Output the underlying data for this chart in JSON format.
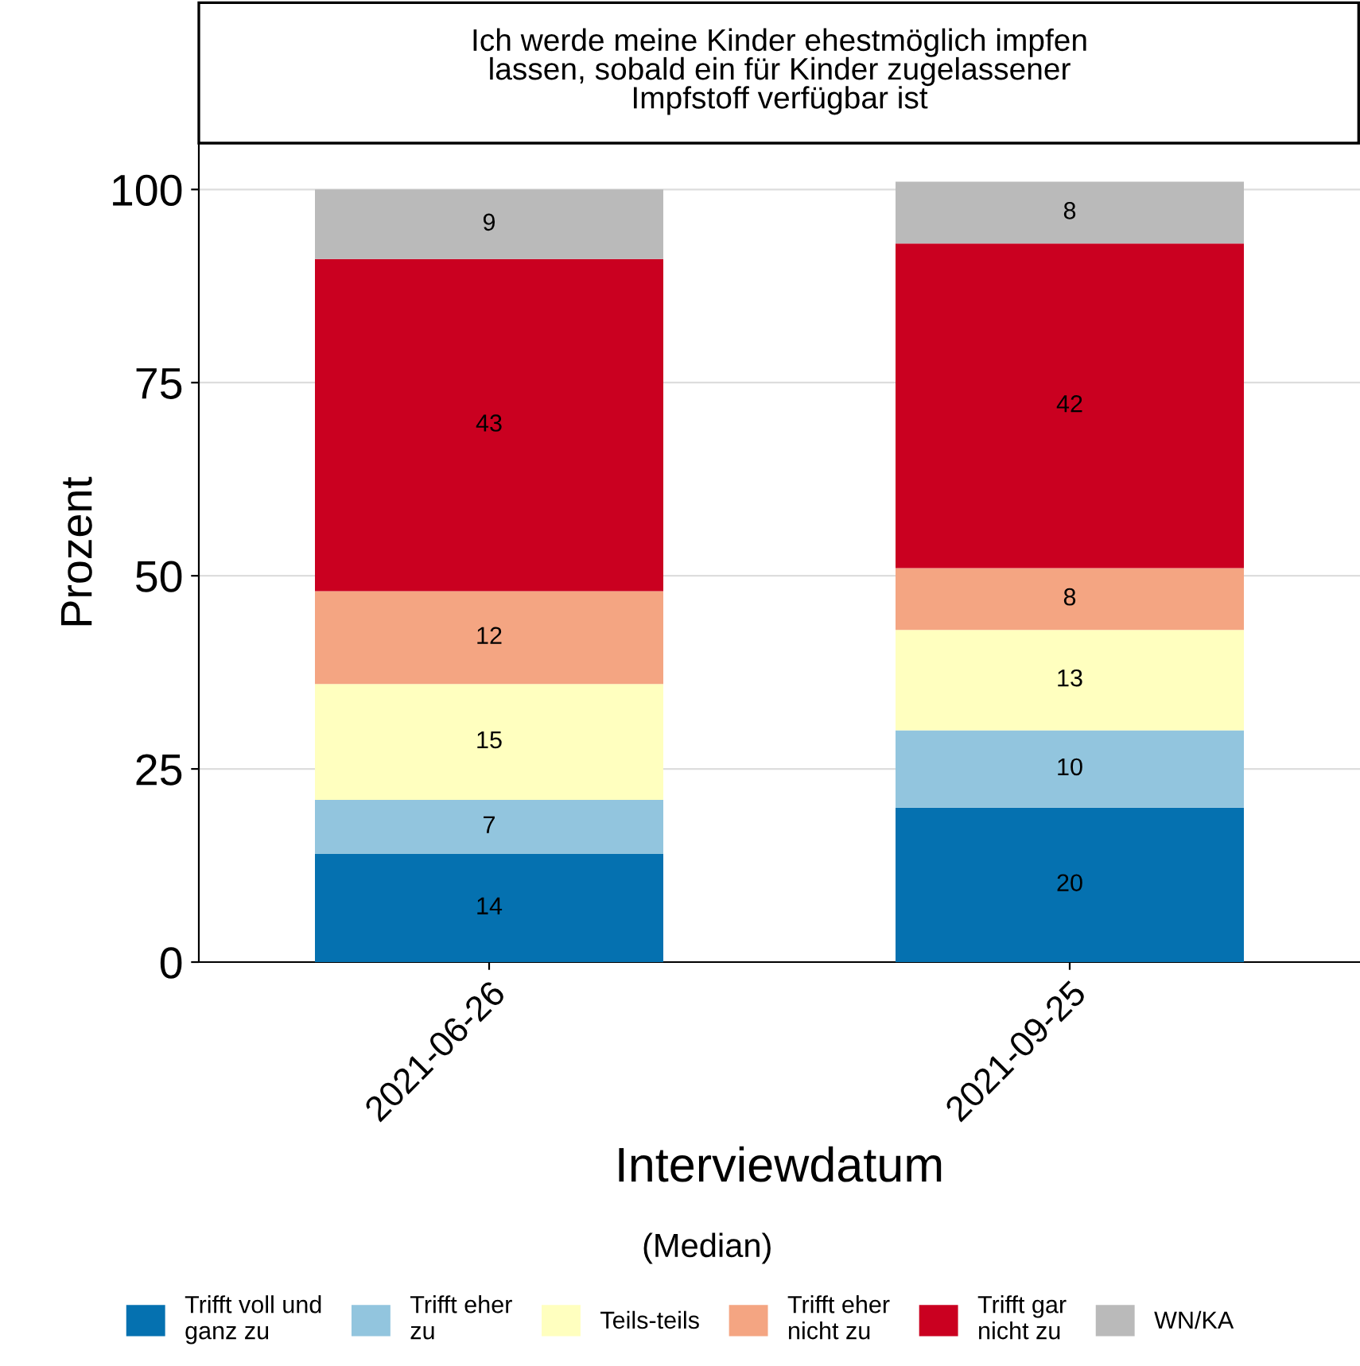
{
  "chart_data": {
    "type": "bar",
    "stacked": true,
    "title": "Ich werde meine Kinder ehestmöglich impfen\nlassen, sobald ein für Kinder zugelassener\nImpfstoff verfügbar ist",
    "xlabel": "Interviewdatum",
    "ylabel": "Prozent",
    "annotations": [
      "(Median)"
    ],
    "categories": [
      "2021-06-26",
      "2021-09-25"
    ],
    "series": [
      {
        "name": "Trifft voll und\nganz zu",
        "color": "#0571b0",
        "values": [
          14,
          20
        ]
      },
      {
        "name": "Trifft eher\nzu",
        "color": "#92c5de",
        "values": [
          7,
          10
        ]
      },
      {
        "name": "Teils-teils",
        "color": "#ffffbf",
        "values": [
          15,
          13
        ]
      },
      {
        "name": "Trifft eher\nnicht zu",
        "color": "#f4a582",
        "values": [
          12,
          8
        ]
      },
      {
        "name": "Trifft gar\nnicht zu",
        "color": "#ca0020",
        "values": [
          43,
          42
        ]
      },
      {
        "name": "WN/KA",
        "color": "#bababa",
        "values": [
          9,
          8
        ]
      }
    ],
    "ylim": [
      0,
      106
    ],
    "yticks": [
      0,
      25,
      50,
      75,
      100
    ],
    "grid": "y",
    "legend": "bottom",
    "data_labels": true
  }
}
